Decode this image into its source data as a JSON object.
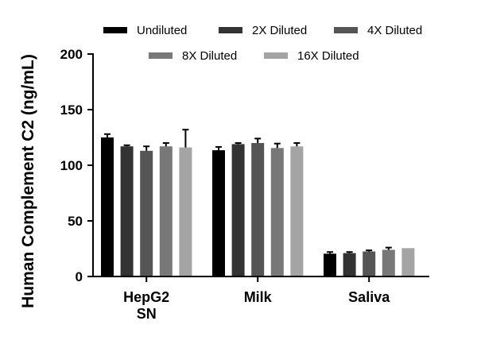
{
  "chart_data": {
    "type": "bar",
    "title": "",
    "xlabel": "",
    "ylabel": "Human Complement C2 (ng/mL)",
    "ylim": [
      0,
      200
    ],
    "yticks": [
      0,
      50,
      100,
      150,
      200
    ],
    "grid": false,
    "legend_position": "top",
    "categories": [
      [
        "HepG2",
        "SN"
      ],
      [
        "Milk"
      ],
      [
        "Saliva"
      ]
    ],
    "series": [
      {
        "name": "Undiluted",
        "color": "#000000",
        "values": [
          125,
          113.5,
          20.5
        ],
        "errors": [
          3,
          3,
          1.5
        ]
      },
      {
        "name": "2X Diluted",
        "color": "#333333",
        "values": [
          117,
          119,
          21
        ],
        "errors": [
          1,
          1,
          1
        ]
      },
      {
        "name": "4X Diluted",
        "color": "#555555",
        "values": [
          113,
          120,
          22.5
        ],
        "errors": [
          4,
          4,
          1
        ]
      },
      {
        "name": "8X Diluted",
        "color": "#787878",
        "values": [
          117,
          115.5,
          24
        ],
        "errors": [
          3,
          4,
          2
        ]
      },
      {
        "name": "16X Diluted",
        "color": "#a4a4a4",
        "values": [
          116,
          117,
          25.5
        ],
        "errors": [
          16,
          3,
          0
        ]
      }
    ]
  }
}
